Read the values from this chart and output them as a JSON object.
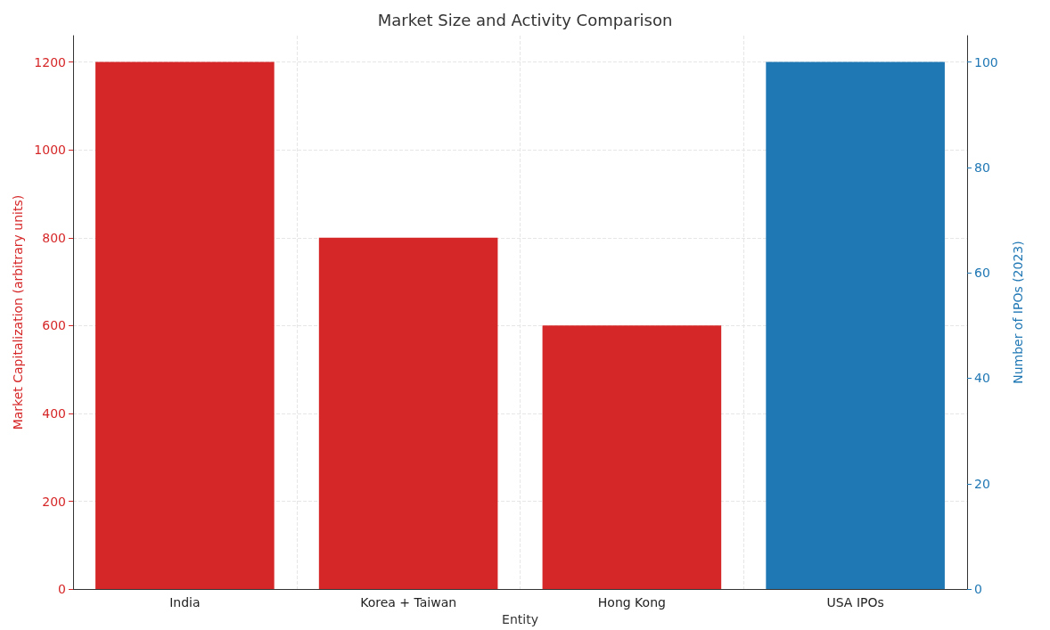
{
  "chart_data": {
    "type": "bar",
    "title": "Market Size and Activity Comparison",
    "xlabel": "Entity",
    "ylabel": "Market Capitalization (arbitrary units)",
    "y2label": "Number of IPOs (2023)",
    "categories": [
      "India",
      "Korea + Taiwan",
      "Hong Kong",
      "USA IPOs"
    ],
    "series": [
      {
        "color": "#d62728",
        "values": [
          1200,
          800,
          600,
          null
        ]
      },
      {
        "color": "#1f77b4",
        "axis": "y2",
        "values": [
          null,
          null,
          null,
          100
        ]
      }
    ],
    "ylim": [
      0,
      1260
    ],
    "yticks": [
      0,
      200,
      400,
      600,
      800,
      1000,
      1200
    ],
    "y2lim": [
      0,
      105
    ],
    "y2ticks": [
      0,
      20,
      40,
      60,
      80,
      100
    ],
    "grid": true
  }
}
